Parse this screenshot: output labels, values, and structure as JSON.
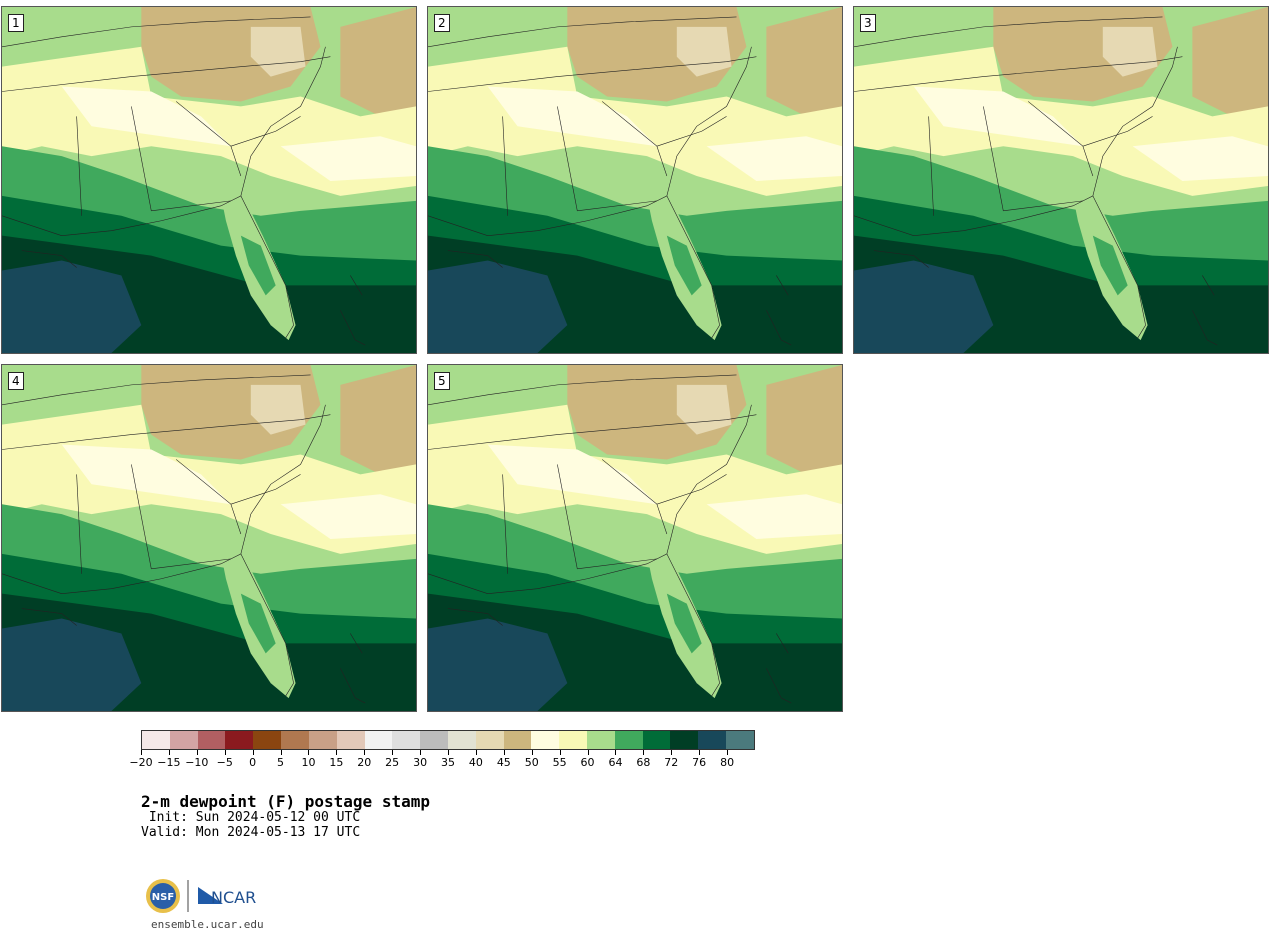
{
  "panels": [
    {
      "label": "1"
    },
    {
      "label": "2"
    },
    {
      "label": "3"
    },
    {
      "label": "4"
    },
    {
      "label": "5"
    }
  ],
  "colorbar": {
    "colors": [
      "#f5e9e8",
      "#d3a4a4",
      "#b15f62",
      "#8b1a1f",
      "#8b4510",
      "#b07850",
      "#c8a087",
      "#e2c8b8",
      "#f2f2f2",
      "#dedede",
      "#bcbcbc",
      "#e2e2d3",
      "#e6d9b3",
      "#cdb67e",
      "#fffde0",
      "#f9f9b6",
      "#a8dc8c",
      "#40a95d",
      "#006c38",
      "#003e25",
      "#18485a",
      "#4b7a7d"
    ],
    "tick_labels": [
      "−20",
      "−15",
      "−10",
      "−5",
      "0",
      "5",
      "10",
      "15",
      "20",
      "25",
      "30",
      "35",
      "40",
      "45",
      "50",
      "55",
      "60",
      "64",
      "68",
      "72",
      "76",
      "80"
    ]
  },
  "title": "2-m dewpoint (F) postage stamp",
  "init": " Init: Sun 2024-05-12 00 UTC",
  "valid": "Valid: Mon 2024-05-13 17 UTC",
  "footer": {
    "site": "ensemble.ucar.edu",
    "ncar_label": "NCAR",
    "nsf_label": "NSF"
  }
}
